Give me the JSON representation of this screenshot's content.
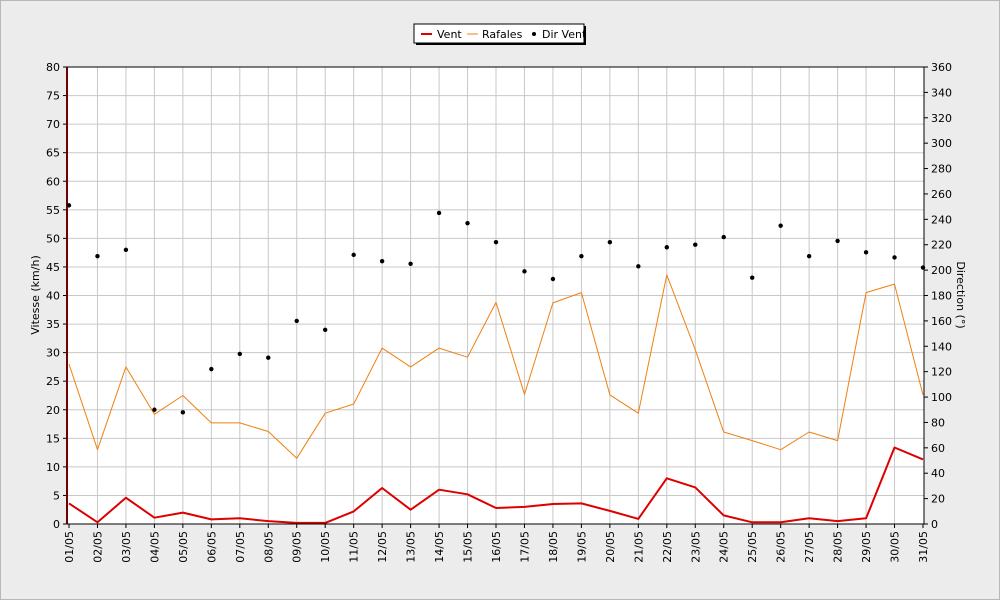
{
  "chart_data": {
    "type": "line",
    "x": [
      "01/05",
      "02/05",
      "03/05",
      "04/05",
      "05/05",
      "06/05",
      "07/05",
      "08/05",
      "09/05",
      "10/05",
      "11/05",
      "12/05",
      "13/05",
      "14/05",
      "15/05",
      "16/05",
      "17/05",
      "18/05",
      "19/05",
      "20/05",
      "21/05",
      "22/05",
      "23/05",
      "24/05",
      "25/05",
      "26/05",
      "27/05",
      "28/05",
      "29/05",
      "30/05",
      "31/05"
    ],
    "xlabel": "",
    "ylabel": "Vitesse (km/h)",
    "ylim": [
      0,
      80
    ],
    "yticks": [
      0,
      5,
      10,
      15,
      20,
      25,
      30,
      35,
      40,
      45,
      50,
      55,
      60,
      65,
      70,
      75,
      80
    ],
    "y2label": "Direction (°)",
    "y2lim": [
      0,
      360
    ],
    "y2ticks": [
      0,
      20,
      40,
      60,
      80,
      100,
      120,
      140,
      160,
      180,
      200,
      220,
      240,
      260,
      280,
      300,
      320,
      340,
      360
    ],
    "grid": true,
    "legend_position": "top-center",
    "series": [
      {
        "name": "Vent",
        "kind": "line",
        "axis": "left",
        "color": "#dd0000",
        "values": [
          3.6,
          0.3,
          4.6,
          1.1,
          2.0,
          0.8,
          1.0,
          0.5,
          0.2,
          0.2,
          2.2,
          6.3,
          2.5,
          6.0,
          5.2,
          2.8,
          3.0,
          3.5,
          3.6,
          2.3,
          0.9,
          8.0,
          6.4,
          1.5,
          0.3,
          0.3,
          1.0,
          0.5,
          1.0,
          13.4,
          11.3
        ]
      },
      {
        "name": "Rafales",
        "kind": "line",
        "axis": "left",
        "color": "#f08010",
        "values": [
          28.0,
          13.0,
          27.5,
          19.2,
          22.5,
          17.7,
          17.7,
          16.2,
          11.5,
          19.4,
          21.0,
          30.8,
          27.5,
          30.8,
          29.2,
          38.8,
          22.7,
          38.7,
          40.5,
          22.6,
          19.4,
          43.6,
          30.5,
          16.1,
          14.6,
          13.0,
          16.1,
          14.6,
          40.5,
          42.0,
          22.6
        ]
      },
      {
        "name": "Dir Vent",
        "kind": "scatter",
        "axis": "right",
        "color": "#000000",
        "values": [
          251,
          211,
          216,
          90,
          88,
          122,
          134,
          131,
          160,
          153,
          212,
          207,
          205,
          245,
          237,
          222,
          199,
          193,
          211,
          222,
          203,
          218,
          220,
          226,
          194,
          235,
          211,
          223,
          214,
          210,
          202
        ]
      }
    ]
  }
}
